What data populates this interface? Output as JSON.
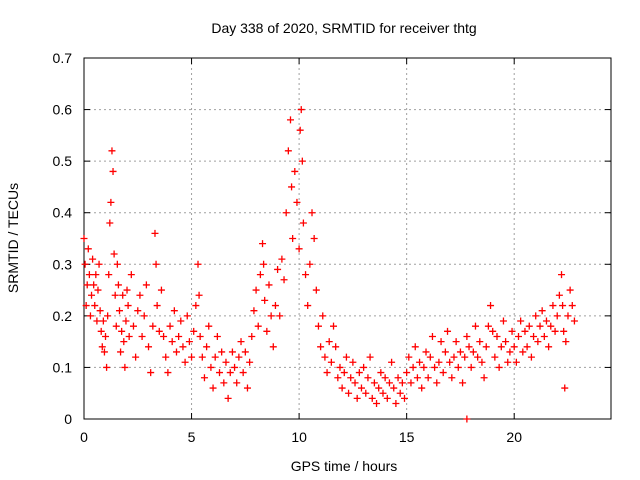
{
  "chart_data": {
    "type": "scatter",
    "title": "Day 338 of 2020, SRMTID for receiver thtg",
    "xlabel": "GPS time / hours",
    "ylabel": "SRMTID / TECUs",
    "xlim": [
      0,
      24.5
    ],
    "ylim": [
      0,
      0.7
    ],
    "xticks": [
      0,
      5,
      10,
      15,
      20
    ],
    "xtick_labels": [
      "0",
      "5",
      "10",
      "15",
      "20"
    ],
    "yticks": [
      0,
      0.1,
      0.2,
      0.3,
      0.4,
      0.5,
      0.6,
      0.7
    ],
    "ytick_labels": [
      "0",
      "0.1",
      "0.2",
      "0.3",
      "0.4",
      "0.5",
      "0.6",
      "0.7"
    ],
    "grid": true,
    "marker": "+",
    "color": "#ff0000",
    "series": [
      {
        "name": "SRMTID",
        "points": [
          [
            0.0,
            0.35
          ],
          [
            0.05,
            0.3
          ],
          [
            0.1,
            0.22
          ],
          [
            0.15,
            0.26
          ],
          [
            0.2,
            0.33
          ],
          [
            0.25,
            0.28
          ],
          [
            0.3,
            0.2
          ],
          [
            0.35,
            0.24
          ],
          [
            0.4,
            0.31
          ],
          [
            0.45,
            0.26
          ],
          [
            0.5,
            0.22
          ],
          [
            0.55,
            0.28
          ],
          [
            0.6,
            0.19
          ],
          [
            0.65,
            0.25
          ],
          [
            0.7,
            0.3
          ],
          [
            0.75,
            0.21
          ],
          [
            0.8,
            0.17
          ],
          [
            0.85,
            0.14
          ],
          [
            0.9,
            0.19
          ],
          [
            0.95,
            0.13
          ],
          [
            1.0,
            0.16
          ],
          [
            1.05,
            0.1
          ],
          [
            1.1,
            0.2
          ],
          [
            1.15,
            0.28
          ],
          [
            1.2,
            0.38
          ],
          [
            1.25,
            0.42
          ],
          [
            1.3,
            0.52
          ],
          [
            1.35,
            0.48
          ],
          [
            1.4,
            0.32
          ],
          [
            1.45,
            0.24
          ],
          [
            1.5,
            0.18
          ],
          [
            1.55,
            0.3
          ],
          [
            1.6,
            0.26
          ],
          [
            1.65,
            0.21
          ],
          [
            1.7,
            0.13
          ],
          [
            1.75,
            0.17
          ],
          [
            1.8,
            0.24
          ],
          [
            1.85,
            0.15
          ],
          [
            1.9,
            0.1
          ],
          [
            1.95,
            0.19
          ],
          [
            2.0,
            0.25
          ],
          [
            2.05,
            0.22
          ],
          [
            2.1,
            0.16
          ],
          [
            2.2,
            0.28
          ],
          [
            2.3,
            0.18
          ],
          [
            2.4,
            0.12
          ],
          [
            2.5,
            0.21
          ],
          [
            2.6,
            0.24
          ],
          [
            2.7,
            0.16
          ],
          [
            2.8,
            0.2
          ],
          [
            2.9,
            0.26
          ],
          [
            3.0,
            0.14
          ],
          [
            3.1,
            0.09
          ],
          [
            3.2,
            0.18
          ],
          [
            3.3,
            0.36
          ],
          [
            3.35,
            0.3
          ],
          [
            3.4,
            0.22
          ],
          [
            3.5,
            0.17
          ],
          [
            3.6,
            0.25
          ],
          [
            3.7,
            0.16
          ],
          [
            3.8,
            0.12
          ],
          [
            3.9,
            0.09
          ],
          [
            4.0,
            0.18
          ],
          [
            4.1,
            0.15
          ],
          [
            4.2,
            0.21
          ],
          [
            4.3,
            0.13
          ],
          [
            4.4,
            0.16
          ],
          [
            4.5,
            0.19
          ],
          [
            4.6,
            0.14
          ],
          [
            4.7,
            0.11
          ],
          [
            4.8,
            0.2
          ],
          [
            4.9,
            0.15
          ],
          [
            5.0,
            0.12
          ],
          [
            5.1,
            0.17
          ],
          [
            5.2,
            0.22
          ],
          [
            5.3,
            0.3
          ],
          [
            5.35,
            0.24
          ],
          [
            5.4,
            0.16
          ],
          [
            5.5,
            0.12
          ],
          [
            5.6,
            0.08
          ],
          [
            5.7,
            0.14
          ],
          [
            5.8,
            0.18
          ],
          [
            5.9,
            0.1
          ],
          [
            6.0,
            0.06
          ],
          [
            6.1,
            0.12
          ],
          [
            6.2,
            0.16
          ],
          [
            6.3,
            0.09
          ],
          [
            6.4,
            0.13
          ],
          [
            6.5,
            0.07
          ],
          [
            6.6,
            0.11
          ],
          [
            6.7,
            0.04
          ],
          [
            6.8,
            0.09
          ],
          [
            6.9,
            0.13
          ],
          [
            7.0,
            0.1
          ],
          [
            7.1,
            0.07
          ],
          [
            7.2,
            0.12
          ],
          [
            7.3,
            0.15
          ],
          [
            7.4,
            0.09
          ],
          [
            7.5,
            0.13
          ],
          [
            7.6,
            0.06
          ],
          [
            7.7,
            0.11
          ],
          [
            7.8,
            0.16
          ],
          [
            7.9,
            0.21
          ],
          [
            8.0,
            0.25
          ],
          [
            8.1,
            0.18
          ],
          [
            8.2,
            0.28
          ],
          [
            8.3,
            0.34
          ],
          [
            8.35,
            0.3
          ],
          [
            8.4,
            0.23
          ],
          [
            8.5,
            0.17
          ],
          [
            8.6,
            0.26
          ],
          [
            8.7,
            0.2
          ],
          [
            8.8,
            0.14
          ],
          [
            8.9,
            0.22
          ],
          [
            9.0,
            0.29
          ],
          [
            9.1,
            0.2
          ],
          [
            9.2,
            0.31
          ],
          [
            9.3,
            0.27
          ],
          [
            9.4,
            0.4
          ],
          [
            9.5,
            0.52
          ],
          [
            9.6,
            0.58
          ],
          [
            9.65,
            0.45
          ],
          [
            9.7,
            0.35
          ],
          [
            9.8,
            0.48
          ],
          [
            9.9,
            0.42
          ],
          [
            10.0,
            0.33
          ],
          [
            10.05,
            0.56
          ],
          [
            10.1,
            0.6
          ],
          [
            10.15,
            0.5
          ],
          [
            10.2,
            0.38
          ],
          [
            10.3,
            0.28
          ],
          [
            10.4,
            0.22
          ],
          [
            10.5,
            0.3
          ],
          [
            10.6,
            0.4
          ],
          [
            10.7,
            0.35
          ],
          [
            10.8,
            0.25
          ],
          [
            10.9,
            0.18
          ],
          [
            11.0,
            0.14
          ],
          [
            11.1,
            0.2
          ],
          [
            11.2,
            0.12
          ],
          [
            11.3,
            0.09
          ],
          [
            11.4,
            0.15
          ],
          [
            11.5,
            0.11
          ],
          [
            11.6,
            0.18
          ],
          [
            11.7,
            0.14
          ],
          [
            11.8,
            0.08
          ],
          [
            11.9,
            0.1
          ],
          [
            12.0,
            0.06
          ],
          [
            12.1,
            0.09
          ],
          [
            12.2,
            0.12
          ],
          [
            12.3,
            0.05
          ],
          [
            12.4,
            0.08
          ],
          [
            12.5,
            0.11
          ],
          [
            12.6,
            0.07
          ],
          [
            12.7,
            0.04
          ],
          [
            12.8,
            0.09
          ],
          [
            12.9,
            0.06
          ],
          [
            13.0,
            0.1
          ],
          [
            13.1,
            0.05
          ],
          [
            13.2,
            0.08
          ],
          [
            13.3,
            0.12
          ],
          [
            13.4,
            0.04
          ],
          [
            13.5,
            0.07
          ],
          [
            13.6,
            0.03
          ],
          [
            13.7,
            0.06
          ],
          [
            13.8,
            0.09
          ],
          [
            13.9,
            0.05
          ],
          [
            14.0,
            0.08
          ],
          [
            14.1,
            0.04
          ],
          [
            14.2,
            0.07
          ],
          [
            14.3,
            0.11
          ],
          [
            14.4,
            0.06
          ],
          [
            14.5,
            0.03
          ],
          [
            14.6,
            0.08
          ],
          [
            14.7,
            0.05
          ],
          [
            14.8,
            0.07
          ],
          [
            14.9,
            0.04
          ],
          [
            15.0,
            0.09
          ],
          [
            15.1,
            0.12
          ],
          [
            15.2,
            0.07
          ],
          [
            15.3,
            0.1
          ],
          [
            15.4,
            0.14
          ],
          [
            15.5,
            0.08
          ],
          [
            15.6,
            0.11
          ],
          [
            15.7,
            0.06
          ],
          [
            15.8,
            0.1
          ],
          [
            15.9,
            0.13
          ],
          [
            16.0,
            0.08
          ],
          [
            16.1,
            0.12
          ],
          [
            16.2,
            0.16
          ],
          [
            16.3,
            0.1
          ],
          [
            16.4,
            0.07
          ],
          [
            16.5,
            0.11
          ],
          [
            16.6,
            0.15
          ],
          [
            16.7,
            0.09
          ],
          [
            16.8,
            0.13
          ],
          [
            16.9,
            0.17
          ],
          [
            17.0,
            0.11
          ],
          [
            17.1,
            0.08
          ],
          [
            17.2,
            0.12
          ],
          [
            17.3,
            0.15
          ],
          [
            17.4,
            0.1
          ],
          [
            17.5,
            0.13
          ],
          [
            17.6,
            0.07
          ],
          [
            17.7,
            0.12
          ],
          [
            17.8,
            0.16
          ],
          [
            17.9,
            0.14
          ],
          [
            18.0,
            0.1
          ],
          [
            18.1,
            0.13
          ],
          [
            18.2,
            0.18
          ],
          [
            18.3,
            0.12
          ],
          [
            18.4,
            0.15
          ],
          [
            18.5,
            0.11
          ],
          [
            18.6,
            0.08
          ],
          [
            18.7,
            0.14
          ],
          [
            18.8,
            0.18
          ],
          [
            18.9,
            0.22
          ],
          [
            19.0,
            0.17
          ],
          [
            19.1,
            0.12
          ],
          [
            19.2,
            0.16
          ],
          [
            19.3,
            0.1
          ],
          [
            19.4,
            0.14
          ],
          [
            19.5,
            0.19
          ],
          [
            19.6,
            0.15
          ],
          [
            19.7,
            0.11
          ],
          [
            19.8,
            0.13
          ],
          [
            19.9,
            0.17
          ],
          [
            20.0,
            0.14
          ],
          [
            20.1,
            0.11
          ],
          [
            20.2,
            0.16
          ],
          [
            20.3,
            0.19
          ],
          [
            20.4,
            0.13
          ],
          [
            20.5,
            0.17
          ],
          [
            20.6,
            0.14
          ],
          [
            20.7,
            0.18
          ],
          [
            20.8,
            0.12
          ],
          [
            20.9,
            0.16
          ],
          [
            21.0,
            0.2
          ],
          [
            21.1,
            0.15
          ],
          [
            21.2,
            0.18
          ],
          [
            21.3,
            0.21
          ],
          [
            21.4,
            0.16
          ],
          [
            21.5,
            0.19
          ],
          [
            21.6,
            0.14
          ],
          [
            21.7,
            0.18
          ],
          [
            21.8,
            0.22
          ],
          [
            21.9,
            0.17
          ],
          [
            22.0,
            0.2
          ],
          [
            22.1,
            0.24
          ],
          [
            22.2,
            0.28
          ],
          [
            22.25,
            0.22
          ],
          [
            22.3,
            0.17
          ],
          [
            22.35,
            0.06
          ],
          [
            22.4,
            0.15
          ],
          [
            22.5,
            0.2
          ],
          [
            22.6,
            0.25
          ],
          [
            22.7,
            0.22
          ],
          [
            22.8,
            0.19
          ],
          [
            17.8,
            0.0
          ]
        ]
      }
    ]
  }
}
